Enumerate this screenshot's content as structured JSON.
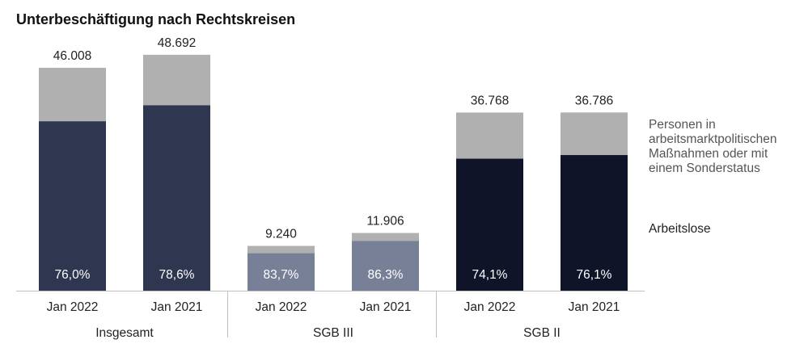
{
  "chart_data": {
    "type": "bar",
    "stacked": true,
    "title": "Unterbeschäftigung nach Rechtskreisen",
    "xlabel": "",
    "ylabel": "",
    "ylim": [
      0,
      50000
    ],
    "grid": false,
    "legend_position": "right",
    "groups": [
      {
        "label": "Insgesamt",
        "bars": [
          {
            "category": "Jan 2022",
            "total": 46008,
            "total_label": "46.008",
            "share": 76.0,
            "share_label": "76,0%",
            "color": "#2e3650"
          },
          {
            "category": "Jan 2021",
            "total": 48692,
            "total_label": "48.692",
            "share": 78.6,
            "share_label": "78,6%",
            "color": "#2e3650"
          }
        ]
      },
      {
        "label": "SGB III",
        "bars": [
          {
            "category": "Jan 2022",
            "total": 9240,
            "total_label": "9.240",
            "share": 83.7,
            "share_label": "83,7%",
            "color": "#778096"
          },
          {
            "category": "Jan 2021",
            "total": 11906,
            "total_label": "11.906",
            "share": 86.3,
            "share_label": "86,3%",
            "color": "#778096"
          }
        ]
      },
      {
        "label": "SGB II",
        "bars": [
          {
            "category": "Jan 2022",
            "total": 36768,
            "total_label": "36.768",
            "share": 74.1,
            "share_label": "74,1%",
            "color": "#0f1428"
          },
          {
            "category": "Jan 2021",
            "total": 36786,
            "total_label": "36.786",
            "share": 76.1,
            "share_label": "76,1%",
            "color": "#0f1428"
          }
        ]
      }
    ],
    "series": [
      {
        "name": "Personen in arbeitsmarktpolitischen Maßnahmen oder mit einem Sonderstatus",
        "color": "#b0b0b0"
      },
      {
        "name": "Arbeitslose"
      }
    ]
  }
}
